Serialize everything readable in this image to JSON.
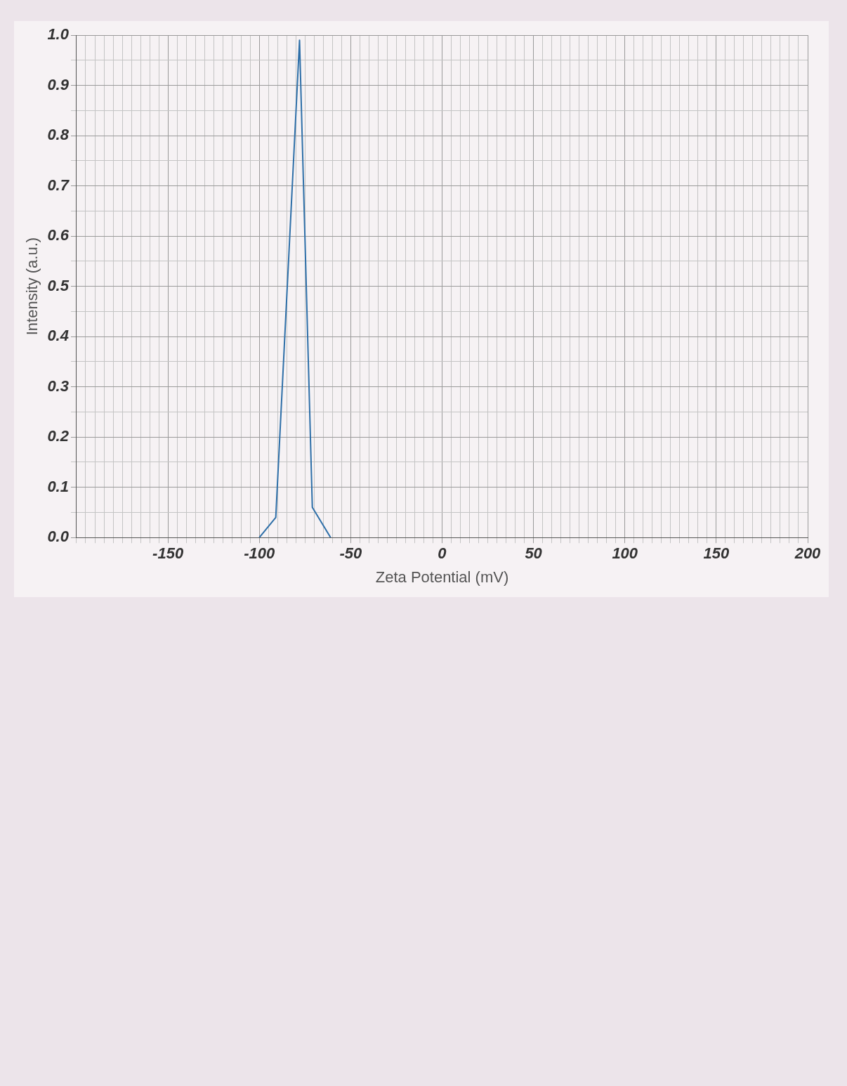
{
  "chart_data": {
    "type": "line",
    "xlabel": "Zeta Potential (mV)",
    "ylabel": "Intensity (a.u.)",
    "x": [
      -100,
      -91,
      -78,
      -71,
      -61
    ],
    "series": [
      {
        "color": "#2e6fa8",
        "values": [
          0,
          0.04,
          0.99,
          0.06,
          0
        ]
      }
    ],
    "xlim": [
      -200,
      200
    ],
    "xticks": [
      {
        "value": -200,
        "label": null
      },
      {
        "value": -195,
        "label": null
      },
      {
        "value": -190,
        "label": null
      },
      {
        "value": -185,
        "label": null
      },
      {
        "value": -180,
        "label": null
      },
      {
        "value": -175,
        "label": null
      },
      {
        "value": -170,
        "label": null
      },
      {
        "value": -165,
        "label": null
      },
      {
        "value": -160,
        "label": null
      },
      {
        "value": -155,
        "label": null
      },
      -150,
      {
        "value": -145,
        "label": null
      },
      {
        "value": -140,
        "label": null
      },
      {
        "value": -135,
        "label": null
      },
      {
        "value": -130,
        "label": null
      },
      {
        "value": -125,
        "label": null
      },
      {
        "value": -120,
        "label": null
      },
      {
        "value": -115,
        "label": null
      },
      {
        "value": -110,
        "label": null
      },
      {
        "value": -105,
        "label": null
      },
      -100,
      {
        "value": -95,
        "label": null
      },
      {
        "value": -90,
        "label": null
      },
      {
        "value": -85,
        "label": null
      },
      {
        "value": -80,
        "label": null
      },
      {
        "value": -75,
        "label": null
      },
      {
        "value": -70,
        "label": null
      },
      {
        "value": -65,
        "label": null
      },
      {
        "value": -60,
        "label": null
      },
      {
        "value": -55,
        "label": null
      },
      -50,
      {
        "value": -45,
        "label": null
      },
      {
        "value": -40,
        "label": null
      },
      {
        "value": -35,
        "label": null
      },
      {
        "value": -30,
        "label": null
      },
      {
        "value": -25,
        "label": null
      },
      {
        "value": -20,
        "label": null
      },
      {
        "value": -15,
        "label": null
      },
      {
        "value": -10,
        "label": null
      },
      {
        "value": -5,
        "label": null
      },
      0,
      {
        "value": 5,
        "label": null
      },
      {
        "value": 10,
        "label": null
      },
      {
        "value": 15,
        "label": null
      },
      {
        "value": 20,
        "label": null
      },
      {
        "value": 25,
        "label": null
      },
      {
        "value": 30,
        "label": null
      },
      {
        "value": 35,
        "label": null
      },
      {
        "value": 40,
        "label": null
      },
      {
        "value": 45,
        "label": null
      },
      50,
      {
        "value": 55,
        "label": null
      },
      {
        "value": 60,
        "label": null
      },
      {
        "value": 65,
        "label": null
      },
      {
        "value": 70,
        "label": null
      },
      {
        "value": 75,
        "label": null
      },
      {
        "value": 80,
        "label": null
      },
      {
        "value": 85,
        "label": null
      },
      {
        "value": 90,
        "label": null
      },
      {
        "value": 95,
        "label": null
      },
      100,
      {
        "value": 105,
        "label": null
      },
      {
        "value": 110,
        "label": null
      },
      {
        "value": 115,
        "label": null
      },
      {
        "value": 120,
        "label": null
      },
      {
        "value": 125,
        "label": null
      },
      {
        "value": 130,
        "label": null
      },
      {
        "value": 135,
        "label": null
      },
      {
        "value": 140,
        "label": null
      },
      {
        "value": 145,
        "label": null
      },
      150,
      {
        "value": 155,
        "label": null
      },
      {
        "value": 160,
        "label": null
      },
      {
        "value": 165,
        "label": null
      },
      {
        "value": 170,
        "label": null
      },
      {
        "value": 175,
        "label": null
      },
      {
        "value": 180,
        "label": null
      },
      {
        "value": 185,
        "label": null
      },
      {
        "value": 190,
        "label": null
      },
      {
        "value": 195,
        "label": null
      },
      200
    ],
    "ylim": [
      0,
      1
    ],
    "yticks": [
      {
        "value": 0,
        "label": "0.0"
      },
      {
        "value": 0.05,
        "label": null
      },
      0.1,
      {
        "value": 0.15,
        "label": null
      },
      0.2,
      {
        "value": 0.25,
        "label": null
      },
      0.3,
      {
        "value": 0.35,
        "label": null
      },
      0.4,
      {
        "value": 0.45,
        "label": null
      },
      0.5,
      {
        "value": 0.55,
        "label": null
      },
      0.6,
      {
        "value": 0.65,
        "label": null
      },
      0.7,
      {
        "value": 0.75,
        "label": null
      },
      0.8,
      {
        "value": 0.85,
        "label": null
      },
      0.9,
      {
        "value": 0.95,
        "label": null
      },
      {
        "value": 1,
        "label": "1.0"
      }
    ],
    "grid": true,
    "legend": false,
    "marker": "none",
    "line_style": "solid"
  }
}
